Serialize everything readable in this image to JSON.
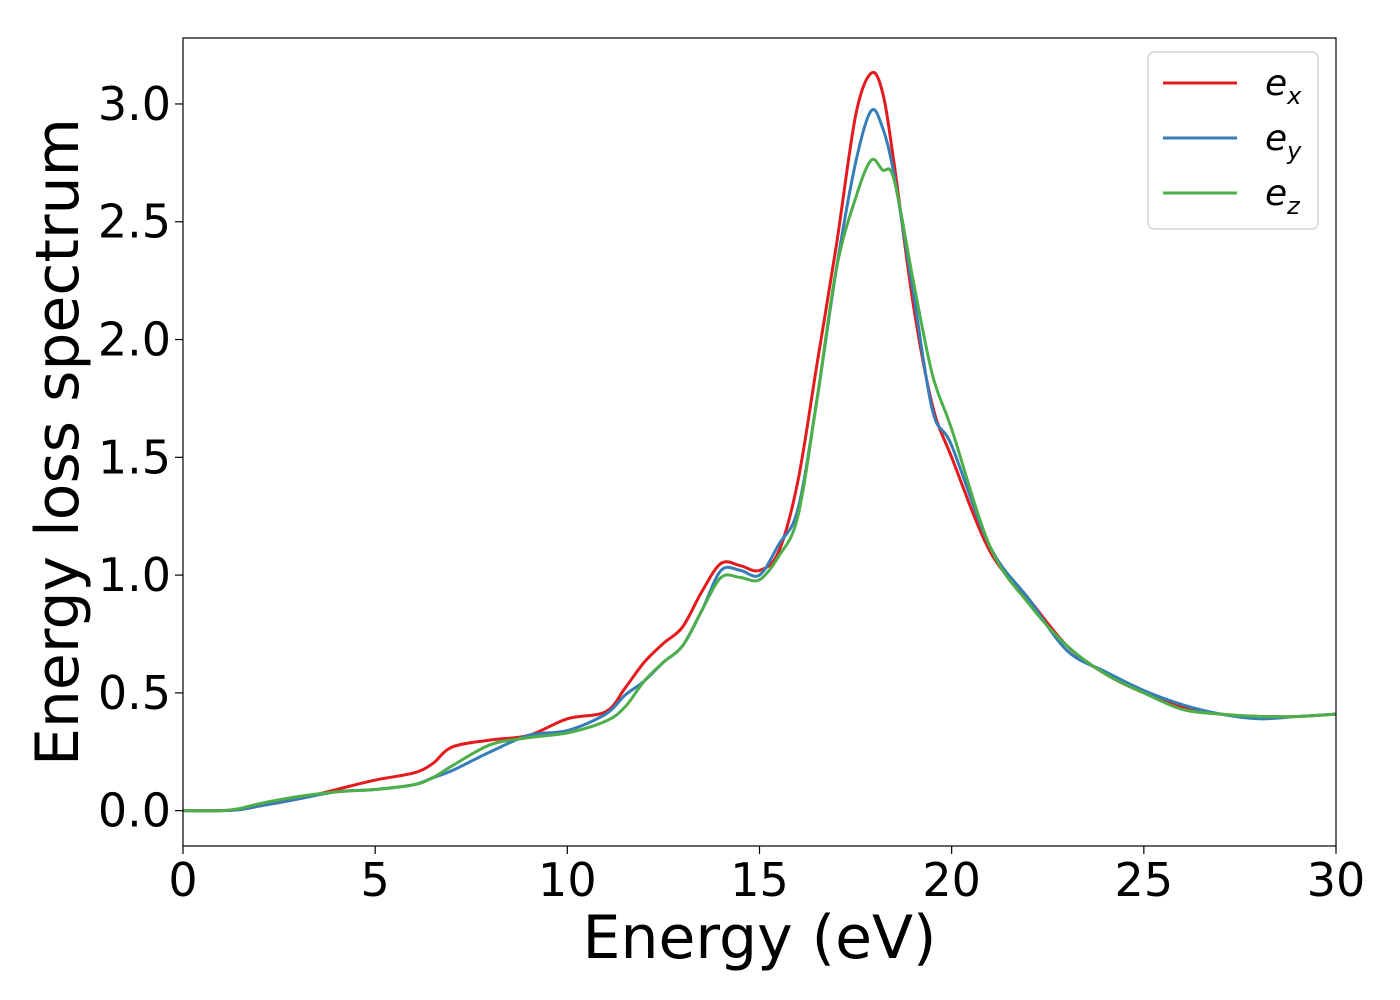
{
  "chart_data": {
    "type": "line",
    "title": "",
    "xlabel": "Energy (eV)",
    "ylabel": "Energy loss spectrum",
    "xlim": [
      0,
      30
    ],
    "ylim": [
      -0.15,
      3.28
    ],
    "xticks": [
      0,
      5,
      10,
      15,
      20,
      25,
      30
    ],
    "yticks": [
      0.0,
      0.5,
      1.0,
      1.5,
      2.0,
      2.5,
      3.0
    ],
    "xtick_labels": [
      "0",
      "5",
      "10",
      "15",
      "20",
      "25",
      "30"
    ],
    "ytick_labels": [
      "0.0",
      "0.5",
      "1.0",
      "1.5",
      "2.0",
      "2.5",
      "3.0"
    ],
    "grid": false,
    "legend_position": "top-right",
    "series": [
      {
        "name": "e_x",
        "label_base": "e",
        "label_sub": "x",
        "color": "#e41a1c",
        "x": [
          0,
          1,
          1.5,
          2,
          3,
          4,
          5,
          6,
          6.5,
          7,
          8,
          9,
          10,
          11,
          11.5,
          12,
          12.5,
          13,
          13.5,
          14,
          14.5,
          15,
          15.5,
          16,
          16.5,
          17,
          17.5,
          17.9,
          18.2,
          18.5,
          19,
          19.5,
          20,
          21,
          22,
          23,
          24,
          25,
          26,
          27,
          28,
          29,
          30
        ],
        "y": [
          0.0,
          0.0,
          0.005,
          0.02,
          0.05,
          0.09,
          0.13,
          0.16,
          0.2,
          0.27,
          0.3,
          0.32,
          0.39,
          0.42,
          0.52,
          0.63,
          0.71,
          0.78,
          0.93,
          1.05,
          1.04,
          1.02,
          1.1,
          1.4,
          1.9,
          2.4,
          2.95,
          3.13,
          3.05,
          2.75,
          2.15,
          1.72,
          1.5,
          1.1,
          0.9,
          0.7,
          0.58,
          0.5,
          0.44,
          0.41,
          0.4,
          0.4,
          0.41
        ]
      },
      {
        "name": "e_y",
        "label_base": "e",
        "label_sub": "y",
        "color": "#377eb8",
        "x": [
          0,
          1,
          1.5,
          2,
          3,
          4,
          5,
          6,
          6.5,
          7,
          8,
          9,
          10,
          11,
          11.5,
          12,
          12.5,
          13,
          13.5,
          14,
          14.5,
          15,
          15.5,
          16,
          16.5,
          17,
          17.5,
          17.9,
          18.2,
          18.5,
          19,
          19.5,
          20,
          21,
          22,
          23,
          24,
          25,
          26,
          27,
          28,
          29,
          30
        ],
        "y": [
          0.0,
          0.0,
          0.005,
          0.02,
          0.05,
          0.08,
          0.09,
          0.11,
          0.14,
          0.17,
          0.25,
          0.32,
          0.34,
          0.41,
          0.49,
          0.55,
          0.63,
          0.7,
          0.85,
          1.02,
          1.02,
          1.0,
          1.13,
          1.28,
          1.75,
          2.3,
          2.75,
          2.97,
          2.9,
          2.7,
          2.2,
          1.7,
          1.55,
          1.12,
          0.9,
          0.68,
          0.59,
          0.51,
          0.45,
          0.41,
          0.39,
          0.4,
          0.41
        ]
      },
      {
        "name": "e_z",
        "label_base": "e",
        "label_sub": "z",
        "color": "#4daf4a",
        "x": [
          0,
          1,
          1.5,
          2,
          3,
          4,
          5,
          6,
          6.5,
          7,
          8,
          9,
          10,
          11,
          11.5,
          12,
          12.5,
          13,
          13.5,
          14,
          14.5,
          15,
          15.5,
          16,
          16.5,
          17,
          17.5,
          17.9,
          18.2,
          18.5,
          19,
          19.5,
          20,
          21,
          22,
          23,
          24,
          25,
          26,
          27,
          28,
          29,
          30
        ],
        "y": [
          0.0,
          0.0,
          0.01,
          0.03,
          0.06,
          0.08,
          0.09,
          0.11,
          0.14,
          0.19,
          0.28,
          0.31,
          0.33,
          0.38,
          0.44,
          0.55,
          0.63,
          0.7,
          0.85,
          0.99,
          0.99,
          0.98,
          1.08,
          1.25,
          1.75,
          2.3,
          2.6,
          2.76,
          2.72,
          2.68,
          2.25,
          1.85,
          1.62,
          1.12,
          0.88,
          0.7,
          0.58,
          0.5,
          0.43,
          0.41,
          0.4,
          0.4,
          0.41
        ]
      }
    ]
  }
}
